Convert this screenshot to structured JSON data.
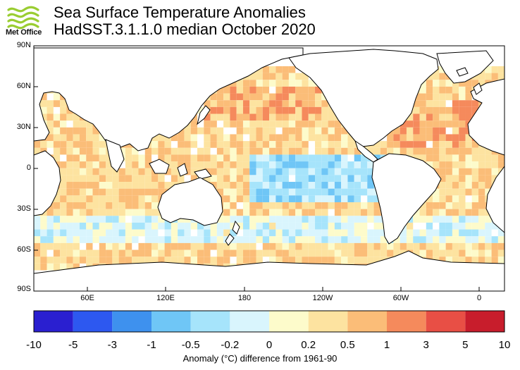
{
  "header": {
    "logo_text": "Met Office",
    "title_line1": "Sea Surface Temperature Anomalies",
    "title_line2": "HadSST.3.1.1.0 median October 2020"
  },
  "map": {
    "lat_labels": [
      "90N",
      "60N",
      "30N",
      "0",
      "30S",
      "60S",
      "90S"
    ],
    "lon_labels": [
      "60E",
      "120E",
      "180",
      "120W",
      "60W",
      "0"
    ],
    "land_color": "#ffffff",
    "missing_data_color": "#ffffff"
  },
  "colorbar": {
    "labels": [
      "-10",
      "-5",
      "-3",
      "-1",
      "-0.5",
      "-0.2",
      "0",
      "0.2",
      "0.5",
      "1",
      "3",
      "5",
      "10"
    ],
    "colors": [
      "#2a1fd0",
      "#2d58f0",
      "#3e91ee",
      "#6fc6f6",
      "#a6e4fb",
      "#d9f5fd",
      "#fdfbcb",
      "#fde3a0",
      "#fbbd78",
      "#f58a5c",
      "#e84f45",
      "#c81d2c"
    ],
    "caption": "Anomaly (°C) difference from 1961-90"
  }
}
